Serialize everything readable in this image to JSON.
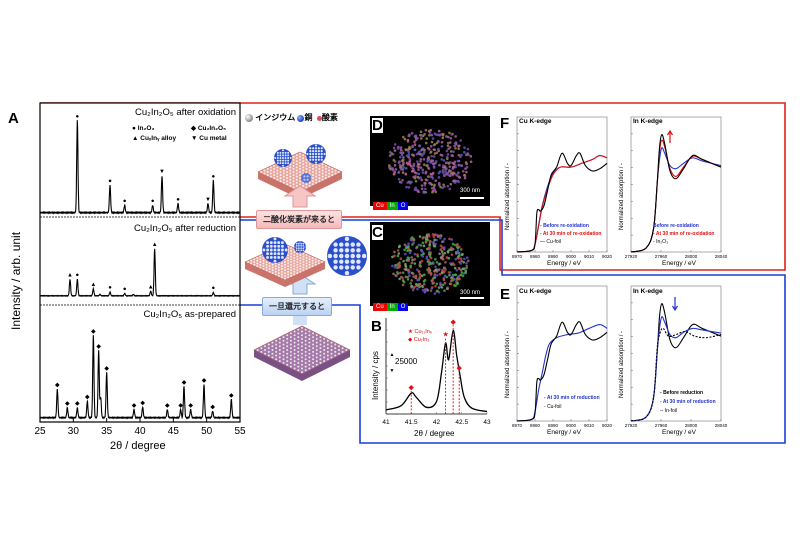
{
  "panel_labels": {
    "A": "A",
    "B": "B",
    "C": "C",
    "D": "D",
    "E": "E",
    "F": "F"
  },
  "legend_atoms": {
    "indium": "インジウム",
    "copper": "銅",
    "oxygen": "酸素"
  },
  "arrows": {
    "co2": "二酸化炭素が来ると",
    "reduce": "一旦還元すると"
  },
  "micrographs": {
    "scale": "300 nm",
    "cu": "Cu",
    "in": "In",
    "o": "O"
  },
  "colors": {
    "red_frame": "#e0201c",
    "blue_frame": "#1a3fd6",
    "in_atom": "#9a9a9a",
    "cu_atom": "#2a4fc8",
    "o_atom": "#d9534a"
  },
  "chart_data": [
    {
      "id": "A",
      "type": "line",
      "title": "",
      "xlabel": "2θ / degree",
      "ylabel": "Intensity / arb. unit",
      "xlim": [
        25,
        55
      ],
      "xticks": [
        25,
        30,
        35,
        40,
        45,
        50,
        55
      ],
      "legend": {
        "in2o3": "In₂O₃",
        "cu2in2o5": "Cu₂In₂O₅",
        "alloy": "CuₓInᵧ alloy",
        "cu": "Cu metal"
      },
      "series": [
        {
          "name": "Cu₂In₂O₅ after oxidation",
          "peaks": [
            [
              30.6,
              1.0,
              "●"
            ],
            [
              35.5,
              0.3,
              "●"
            ],
            [
              37.7,
              0.08,
              "●"
            ],
            [
              41.9,
              0.08,
              "●"
            ],
            [
              43.3,
              0.4,
              "▼"
            ],
            [
              45.7,
              0.1,
              "●"
            ],
            [
              50.2,
              0.1,
              "▼"
            ],
            [
              51.0,
              0.35,
              "●"
            ]
          ]
        },
        {
          "name": "Cu₂In₂O₅ after reduction",
          "peaks": [
            [
              29.5,
              0.35,
              "▲"
            ],
            [
              30.6,
              0.35,
              "●"
            ],
            [
              33.0,
              0.15,
              "▲"
            ],
            [
              34.0,
              0.03,
              ""
            ],
            [
              35.5,
              0.08,
              "●"
            ],
            [
              37.7,
              0.05,
              "●"
            ],
            [
              39.0,
              0.03,
              ""
            ],
            [
              41.6,
              0.1,
              "▲"
            ],
            [
              42.2,
              1.0,
              "▲"
            ],
            [
              51.0,
              0.07,
              "●"
            ]
          ]
        },
        {
          "name": "Cu₂In₂O₅ as-prepared",
          "peaks": [
            [
              27.6,
              0.35,
              "◆"
            ],
            [
              29.1,
              0.12,
              "◆"
            ],
            [
              30.6,
              0.12,
              "◆"
            ],
            [
              32.1,
              0.2,
              "◆"
            ],
            [
              33.0,
              1.0,
              "◆"
            ],
            [
              33.8,
              0.82,
              "◆"
            ],
            [
              34.1,
              0.25,
              ""
            ],
            [
              35.0,
              0.55,
              "◆"
            ],
            [
              39.1,
              0.1,
              "◆"
            ],
            [
              40.4,
              0.13,
              "◆"
            ],
            [
              44.1,
              0.1,
              "◆"
            ],
            [
              46.1,
              0.1,
              "◆"
            ],
            [
              46.6,
              0.38,
              "◆"
            ],
            [
              47.6,
              0.1,
              "◆"
            ],
            [
              49.6,
              0.4,
              "◆"
            ],
            [
              50.9,
              0.08,
              "◆"
            ],
            [
              53.7,
              0.22,
              "◆"
            ]
          ]
        }
      ]
    },
    {
      "id": "B",
      "type": "line",
      "xlabel": "2θ / degree",
      "ylabel": "Intensity / cps",
      "scale_label": "25000",
      "xlim": [
        41,
        43
      ],
      "ylim": [
        0,
        1.15
      ],
      "xticks": [
        41,
        41.5,
        42,
        42.5,
        43
      ],
      "legend": {
        "star": "Cu₁₁In₉",
        "diamond": "Cu₇In₃"
      },
      "series": [
        {
          "name": "XRD",
          "points": [
            [
              41,
              0.05
            ],
            [
              41.3,
              0.1
            ],
            [
              41.5,
              0.25
            ],
            [
              41.6,
              0.2
            ],
            [
              41.8,
              0.08
            ],
            [
              42.0,
              0.15
            ],
            [
              42.1,
              0.5
            ],
            [
              42.18,
              0.85
            ],
            [
              42.24,
              0.65
            ],
            [
              42.33,
              1.0
            ],
            [
              42.4,
              0.7
            ],
            [
              42.47,
              0.45
            ],
            [
              42.55,
              0.2
            ],
            [
              42.7,
              0.07
            ],
            [
              43,
              0.03
            ]
          ]
        }
      ],
      "markers": [
        [
          41.5,
          0.32,
          "◆"
        ],
        [
          42.18,
          0.95,
          "★"
        ],
        [
          42.33,
          1.1,
          "◆"
        ],
        [
          42.45,
          0.55,
          "◆"
        ]
      ]
    },
    {
      "id": "F-Cu",
      "type": "line",
      "title": "Cu K-edge",
      "xlabel": "Energy / eV",
      "ylabel": "Normalized absorption / -",
      "xlim": [
        8970,
        9020
      ],
      "ylim": [
        0,
        1.75
      ],
      "xticks": [
        8970,
        8980,
        8990,
        9000,
        9010,
        9020
      ],
      "series": [
        {
          "name": "Before re-oxidation",
          "color": "#2233cc",
          "points": [
            [
              8970,
              0
            ],
            [
              8978,
              0.02
            ],
            [
              8980,
              0.1
            ],
            [
              8982,
              0.35
            ],
            [
              8984,
              0.6
            ],
            [
              8987,
              0.85
            ],
            [
              8990,
              1.02
            ],
            [
              8994,
              1.1
            ],
            [
              9000,
              1.1
            ],
            [
              9006,
              1.15
            ],
            [
              9012,
              1.2
            ],
            [
              9016,
              1.25
            ],
            [
              9020,
              1.22
            ]
          ]
        },
        {
          "name": "At 30 min of re-oxidation",
          "color": "#e01010",
          "points": [
            [
              8970,
              0
            ],
            [
              8978,
              0.02
            ],
            [
              8980,
              0.1
            ],
            [
              8982,
              0.33
            ],
            [
              8984,
              0.58
            ],
            [
              8987,
              0.82
            ],
            [
              8990,
              1.0
            ],
            [
              8994,
              1.1
            ],
            [
              9000,
              1.1
            ],
            [
              9006,
              1.15
            ],
            [
              9012,
              1.2
            ],
            [
              9016,
              1.25
            ],
            [
              9020,
              1.22
            ]
          ]
        },
        {
          "name": "Cu-foil",
          "color": "#000000",
          "points": [
            [
              8970,
              0
            ],
            [
              8978,
              0.02
            ],
            [
              8980,
              0.1
            ],
            [
              8981,
              0.5
            ],
            [
              8982,
              0.55
            ],
            [
              8983,
              0.53
            ],
            [
              8985,
              0.6
            ],
            [
              8987,
              0.8
            ],
            [
              8989,
              1.0
            ],
            [
              8992,
              1.1
            ],
            [
              8995,
              1.28
            ],
            [
              8998,
              1.15
            ],
            [
              9000,
              1.12
            ],
            [
              9003,
              1.25
            ],
            [
              9005,
              1.28
            ],
            [
              9008,
              1.12
            ],
            [
              9012,
              1.05
            ],
            [
              9016,
              1.08
            ],
            [
              9020,
              1.15
            ]
          ]
        }
      ]
    },
    {
      "id": "F-In",
      "type": "line",
      "title": "In K-edge",
      "xlabel": "Energy / eV",
      "ylabel": "Normalized absorption / -",
      "xlim": [
        27920,
        28040
      ],
      "ylim": [
        0,
        1.75
      ],
      "xticks": [
        27920,
        27960,
        28000,
        28040
      ],
      "series": [
        {
          "name": "Before re-oxidation",
          "color": "#2233cc",
          "points": [
            [
              27920,
              0
            ],
            [
              27940,
              0.05
            ],
            [
              27950,
              0.3
            ],
            [
              27955,
              0.9
            ],
            [
              27958,
              1.2
            ],
            [
              27961,
              1.35
            ],
            [
              27965,
              1.28
            ],
            [
              27972,
              1.12
            ],
            [
              27980,
              1.08
            ],
            [
              27990,
              1.15
            ],
            [
              28002,
              1.22
            ],
            [
              28015,
              1.18
            ],
            [
              28040,
              1.12
            ]
          ]
        },
        {
          "name": "At 30 min of re-oxidation",
          "color": "#e01010",
          "points": [
            [
              27920,
              0
            ],
            [
              27940,
              0.05
            ],
            [
              27950,
              0.3
            ],
            [
              27955,
              0.9
            ],
            [
              27958,
              1.3
            ],
            [
              27961,
              1.45
            ],
            [
              27965,
              1.36
            ],
            [
              27972,
              1.08
            ],
            [
              27980,
              0.98
            ],
            [
              27990,
              1.1
            ],
            [
              28002,
              1.24
            ],
            [
              28015,
              1.2
            ],
            [
              28040,
              1.1
            ]
          ]
        },
        {
          "name": "In₂O₃",
          "color": "#000000",
          "points": [
            [
              27920,
              0
            ],
            [
              27940,
              0.05
            ],
            [
              27950,
              0.3
            ],
            [
              27955,
              0.9
            ],
            [
              27958,
              1.35
            ],
            [
              27961,
              1.52
            ],
            [
              27965,
              1.4
            ],
            [
              27972,
              1.05
            ],
            [
              27980,
              0.95
            ],
            [
              27990,
              1.08
            ],
            [
              28002,
              1.25
            ],
            [
              28015,
              1.2
            ],
            [
              28040,
              1.1
            ]
          ]
        }
      ],
      "arrow": "up"
    },
    {
      "id": "E-Cu",
      "type": "line",
      "title": "Cu K-edge",
      "xlabel": "Energy / eV",
      "ylabel": "Normalized absorption / -",
      "xlim": [
        8970,
        9020
      ],
      "ylim": [
        0,
        1.75
      ],
      "xticks": [
        8970,
        8980,
        8990,
        9000,
        9010,
        9020
      ],
      "series": [
        {
          "name": "At 30 min of reduction",
          "color": "#2233cc",
          "points": [
            [
              8970,
              0
            ],
            [
              8978,
              0.02
            ],
            [
              8980,
              0.12
            ],
            [
              8982,
              0.4
            ],
            [
              8984,
              0.62
            ],
            [
              8986,
              0.85
            ],
            [
              8988,
              1.0
            ],
            [
              8992,
              1.08
            ],
            [
              8998,
              1.12
            ],
            [
              9004,
              1.14
            ],
            [
              9010,
              1.2
            ],
            [
              9016,
              1.25
            ],
            [
              9020,
              1.2
            ]
          ]
        },
        {
          "name": "Cu-foil",
          "color": "#000000",
          "points": [
            [
              8970,
              0
            ],
            [
              8978,
              0.02
            ],
            [
              8980,
              0.1
            ],
            [
              8981,
              0.5
            ],
            [
              8982,
              0.55
            ],
            [
              8983,
              0.53
            ],
            [
              8985,
              0.6
            ],
            [
              8987,
              0.8
            ],
            [
              8989,
              1.0
            ],
            [
              8992,
              1.1
            ],
            [
              8995,
              1.28
            ],
            [
              8998,
              1.15
            ],
            [
              9000,
              1.12
            ],
            [
              9003,
              1.25
            ],
            [
              9005,
              1.28
            ],
            [
              9008,
              1.12
            ],
            [
              9012,
              1.05
            ],
            [
              9016,
              1.08
            ],
            [
              9020,
              1.15
            ]
          ]
        }
      ]
    },
    {
      "id": "E-In",
      "type": "line",
      "title": "In K-edge",
      "xlabel": "Energy / eV",
      "ylabel": "Normalized absorption / -",
      "xlim": [
        27920,
        28040
      ],
      "ylim": [
        0,
        1.75
      ],
      "xticks": [
        27920,
        27960,
        28000,
        28040
      ],
      "series": [
        {
          "name": "Before reduction",
          "color": "#000000",
          "points": [
            [
              27920,
              0
            ],
            [
              27940,
              0.05
            ],
            [
              27950,
              0.3
            ],
            [
              27955,
              0.9
            ],
            [
              27958,
              1.35
            ],
            [
              27961,
              1.52
            ],
            [
              27965,
              1.4
            ],
            [
              27972,
              1.05
            ],
            [
              27980,
              0.95
            ],
            [
              27990,
              1.08
            ],
            [
              28002,
              1.25
            ],
            [
              28015,
              1.2
            ],
            [
              28040,
              1.1
            ]
          ]
        },
        {
          "name": "At 30 min of reduction",
          "color": "#2233cc",
          "points": [
            [
              27920,
              0
            ],
            [
              27940,
              0.05
            ],
            [
              27950,
              0.3
            ],
            [
              27955,
              0.9
            ],
            [
              27958,
              1.2
            ],
            [
              27961,
              1.35
            ],
            [
              27965,
              1.28
            ],
            [
              27972,
              1.12
            ],
            [
              27980,
              1.08
            ],
            [
              27990,
              1.15
            ],
            [
              28002,
              1.2
            ],
            [
              28015,
              1.18
            ],
            [
              28040,
              1.14
            ]
          ]
        },
        {
          "name": "In-foil",
          "color": "#000000",
          "dashed": true,
          "points": [
            [
              27920,
              0
            ],
            [
              27940,
              0.05
            ],
            [
              27950,
              0.3
            ],
            [
              27955,
              0.95
            ],
            [
              27959,
              1.15
            ],
            [
              27963,
              1.2
            ],
            [
              27970,
              1.1
            ],
            [
              27980,
              1.12
            ],
            [
              27992,
              1.16
            ],
            [
              28005,
              1.1
            ],
            [
              28020,
              1.08
            ],
            [
              28040,
              1.12
            ]
          ]
        }
      ],
      "arrow": "down"
    }
  ]
}
